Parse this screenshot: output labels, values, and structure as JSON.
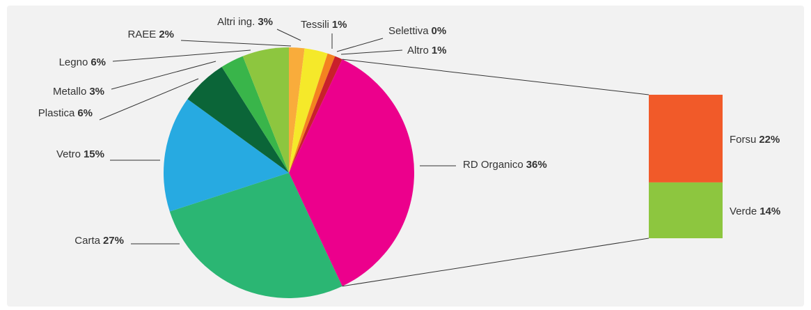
{
  "chart_data": {
    "type": "bar-of-pie",
    "categories": [
      "RAEE",
      "Altri ing.",
      "Tessili",
      "Selettiva",
      "Altro",
      "RD Organico",
      "Carta",
      "Vetro",
      "Plastica",
      "Metallo",
      "Legno"
    ],
    "values": [
      2,
      3,
      1,
      0,
      1,
      36,
      27,
      15,
      6,
      3,
      6
    ],
    "value_labels": [
      "2%",
      "3%",
      "1%",
      "0%",
      "1%",
      "36%",
      "27%",
      "15%",
      "6%",
      "3%",
      "6%"
    ],
    "colors": [
      "#f9ac3b",
      "#f5e92a",
      "#f48220",
      "#e84e1b",
      "#c9202b",
      "#ec008c",
      "#2bb673",
      "#27aae1",
      "#0b6538",
      "#39b54a",
      "#8dc63f"
    ],
    "breakdown": {
      "categories": [
        "Forsu",
        "Verde"
      ],
      "values": [
        22,
        14
      ],
      "value_labels": [
        "22%",
        "14%"
      ],
      "colors": [
        "#f15a29",
        "#8dc63f"
      ]
    }
  }
}
